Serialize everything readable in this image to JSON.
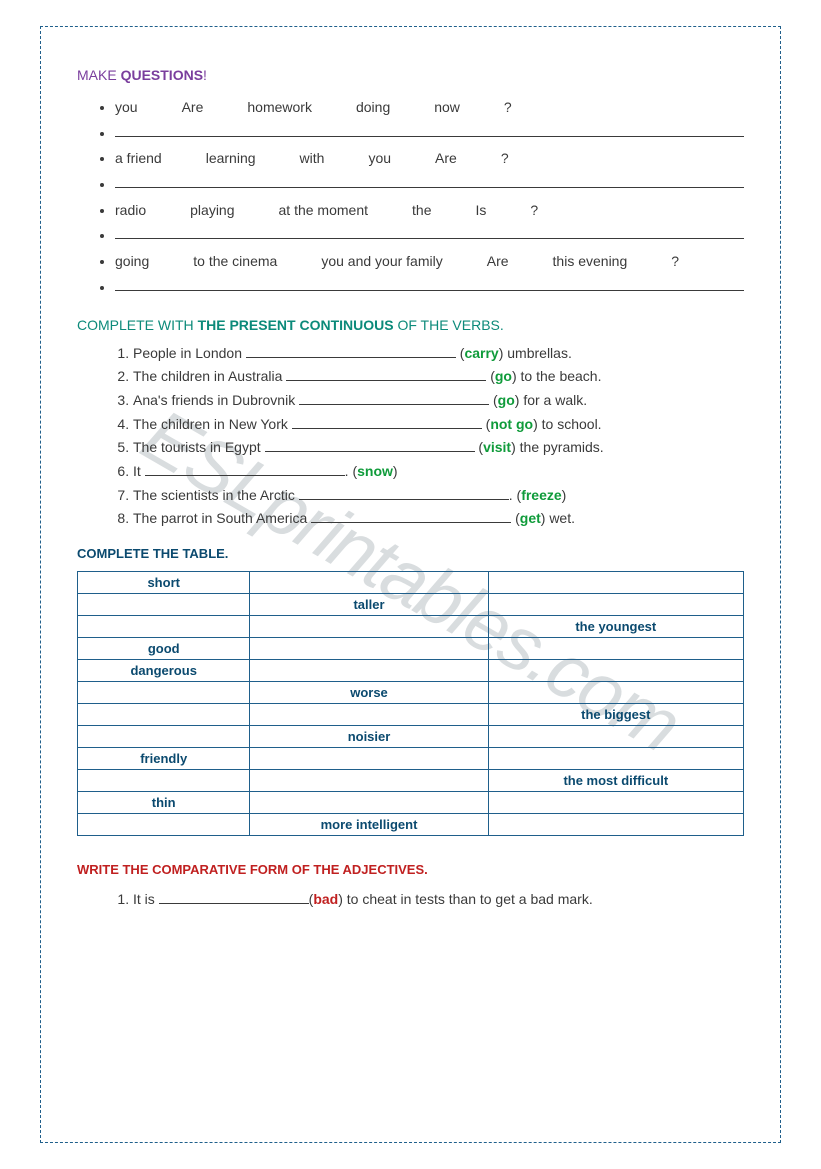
{
  "watermark": "ESLprintables.com",
  "section1": {
    "title_light": "MAKE ",
    "title_bold": "QUESTIONS",
    "title_tail": "!",
    "color": "#7a3e9d",
    "rows": [
      {
        "words": [
          "you",
          "Are",
          "homework",
          "doing",
          "now",
          "?"
        ]
      },
      {
        "words": [
          "a friend",
          "learning",
          "with",
          "you",
          "Are",
          "?"
        ]
      },
      {
        "words": [
          "radio",
          "playing",
          "at the moment",
          "the",
          "Is",
          "?"
        ]
      },
      {
        "words": [
          "going",
          "to the cinema",
          "you and your family",
          "Are",
          "this evening",
          "?"
        ]
      }
    ]
  },
  "section2": {
    "title_light1": "COMPLETE WITH ",
    "title_bold": "THE PRESENT CONTINUOUS",
    "title_light2": " OF THE VERBS.",
    "color": "#0c8a7a",
    "items": [
      {
        "pre": "People in London ",
        "blank_w": 210,
        "post1": " (",
        "verb": "carry",
        "post2": ") umbrellas."
      },
      {
        "pre": "The children in Australia ",
        "blank_w": 200,
        "post1": " (",
        "verb": "go",
        "post2": ") to the beach."
      },
      {
        "pre": "Ana's friends in Dubrovnik ",
        "blank_w": 190,
        "post1": " (",
        "verb": "go",
        "post2": ") for a walk."
      },
      {
        "pre": "The children in New York ",
        "blank_w": 190,
        "post1": " (",
        "verb": "not go",
        "post2": ") to school."
      },
      {
        "pre": "The tourists in Egypt ",
        "blank_w": 210,
        "post1": " (",
        "verb": "visit",
        "post2": ") the pyramids."
      },
      {
        "pre": "It ",
        "blank_w": 200,
        "post1": ". (",
        "verb": "snow",
        "post2": ")"
      },
      {
        "pre": "The scientists in the Arctic ",
        "blank_w": 210,
        "post1": ". (",
        "verb": "freeze",
        "post2": ")"
      },
      {
        "pre": "The parrot in South America ",
        "blank_w": 200,
        "post1": " (",
        "verb": "get",
        "post2": ") wet."
      }
    ]
  },
  "section3": {
    "title": "COMPLETE THE TABLE.",
    "color": "#0b4a6f",
    "border_color": "#1f5f8b",
    "rows": [
      [
        "short",
        "",
        ""
      ],
      [
        "",
        "taller",
        ""
      ],
      [
        "",
        "",
        "the youngest"
      ],
      [
        "good",
        "",
        ""
      ],
      [
        "dangerous",
        "",
        ""
      ],
      [
        "",
        "worse",
        ""
      ],
      [
        "",
        "",
        "the biggest"
      ],
      [
        "",
        "noisier",
        ""
      ],
      [
        "friendly",
        "",
        ""
      ],
      [
        "",
        "",
        "the most difficult"
      ],
      [
        "thin",
        "",
        ""
      ],
      [
        "",
        "more intelligent",
        ""
      ]
    ]
  },
  "section4": {
    "title": "WRITE THE COMPARATIVE FORM OF THE ADJECTIVES.",
    "color": "#c02020",
    "items": [
      {
        "pre": "It is ",
        "blank_w": 150,
        "post1": "(",
        "verb": "bad",
        "post2": ") to cheat in tests than to get a bad mark."
      }
    ]
  }
}
